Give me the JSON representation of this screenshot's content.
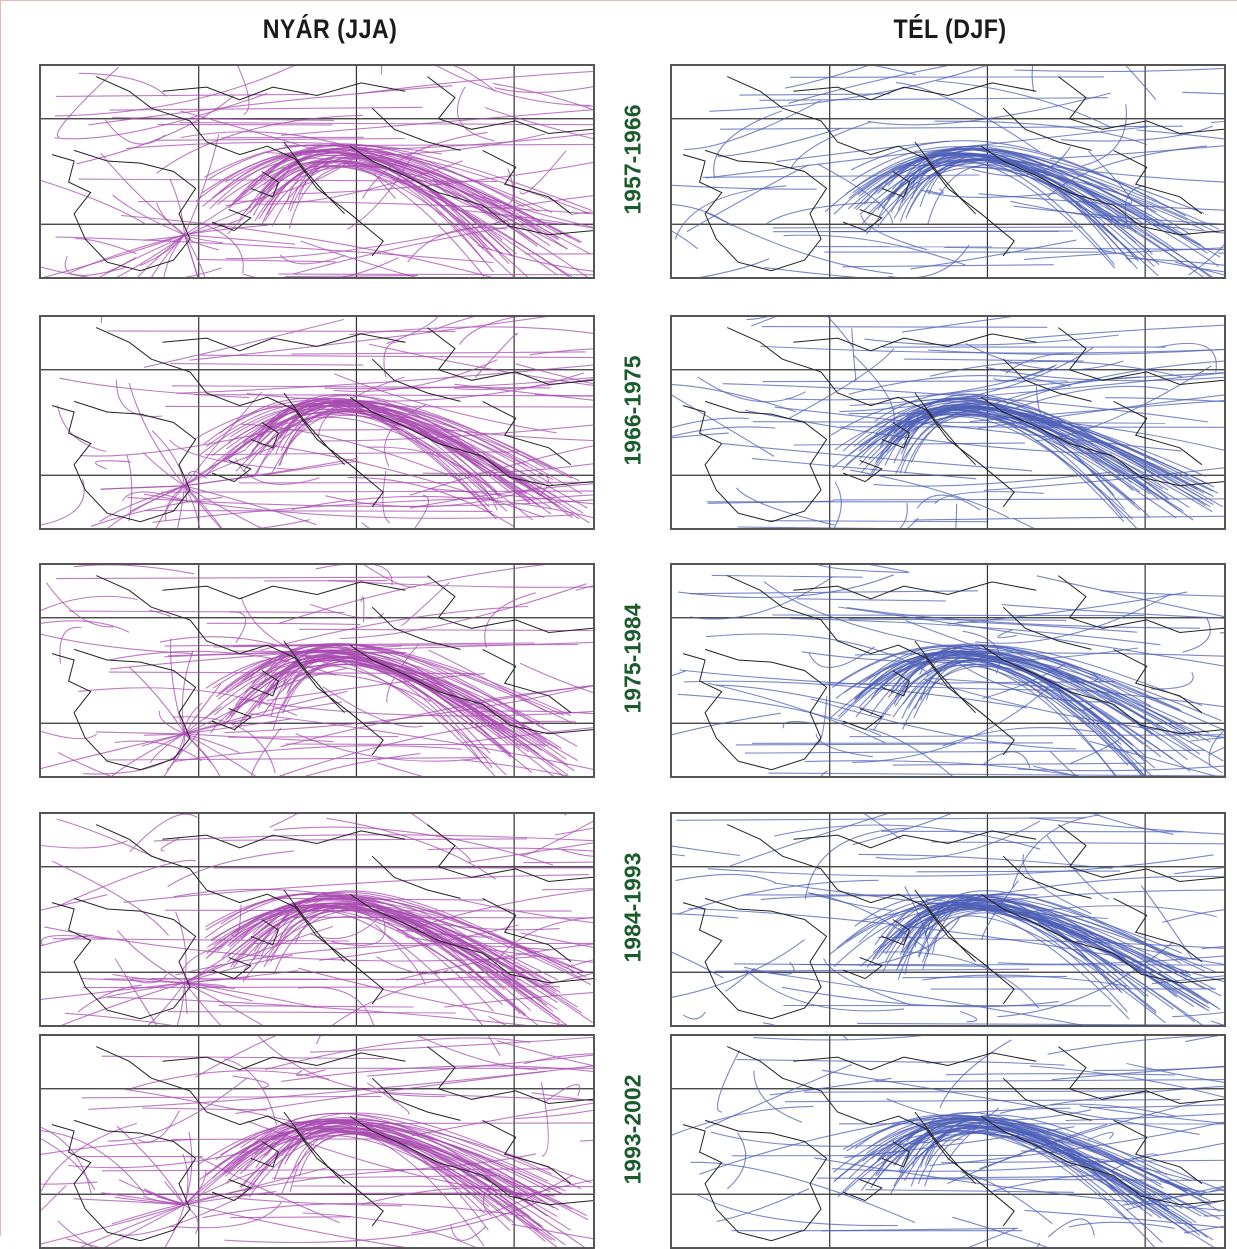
{
  "columns": [
    {
      "title": "NYÁR (JJA)",
      "track_color": "#a84cb0"
    },
    {
      "title": "TÉL (DJF)",
      "track_color": "#4d5fb6"
    }
  ],
  "periods": [
    "1957-1966",
    "1966-1975",
    "1975-1984",
    "1984-1993",
    "1993-2002"
  ],
  "graticule": {
    "lon_lines": [
      0,
      10,
      20
    ],
    "lat_lines": [
      50,
      40
    ],
    "lon_range": [
      -10,
      25
    ],
    "lat_range": [
      35,
      55
    ]
  },
  "coast_color": "#222222"
}
